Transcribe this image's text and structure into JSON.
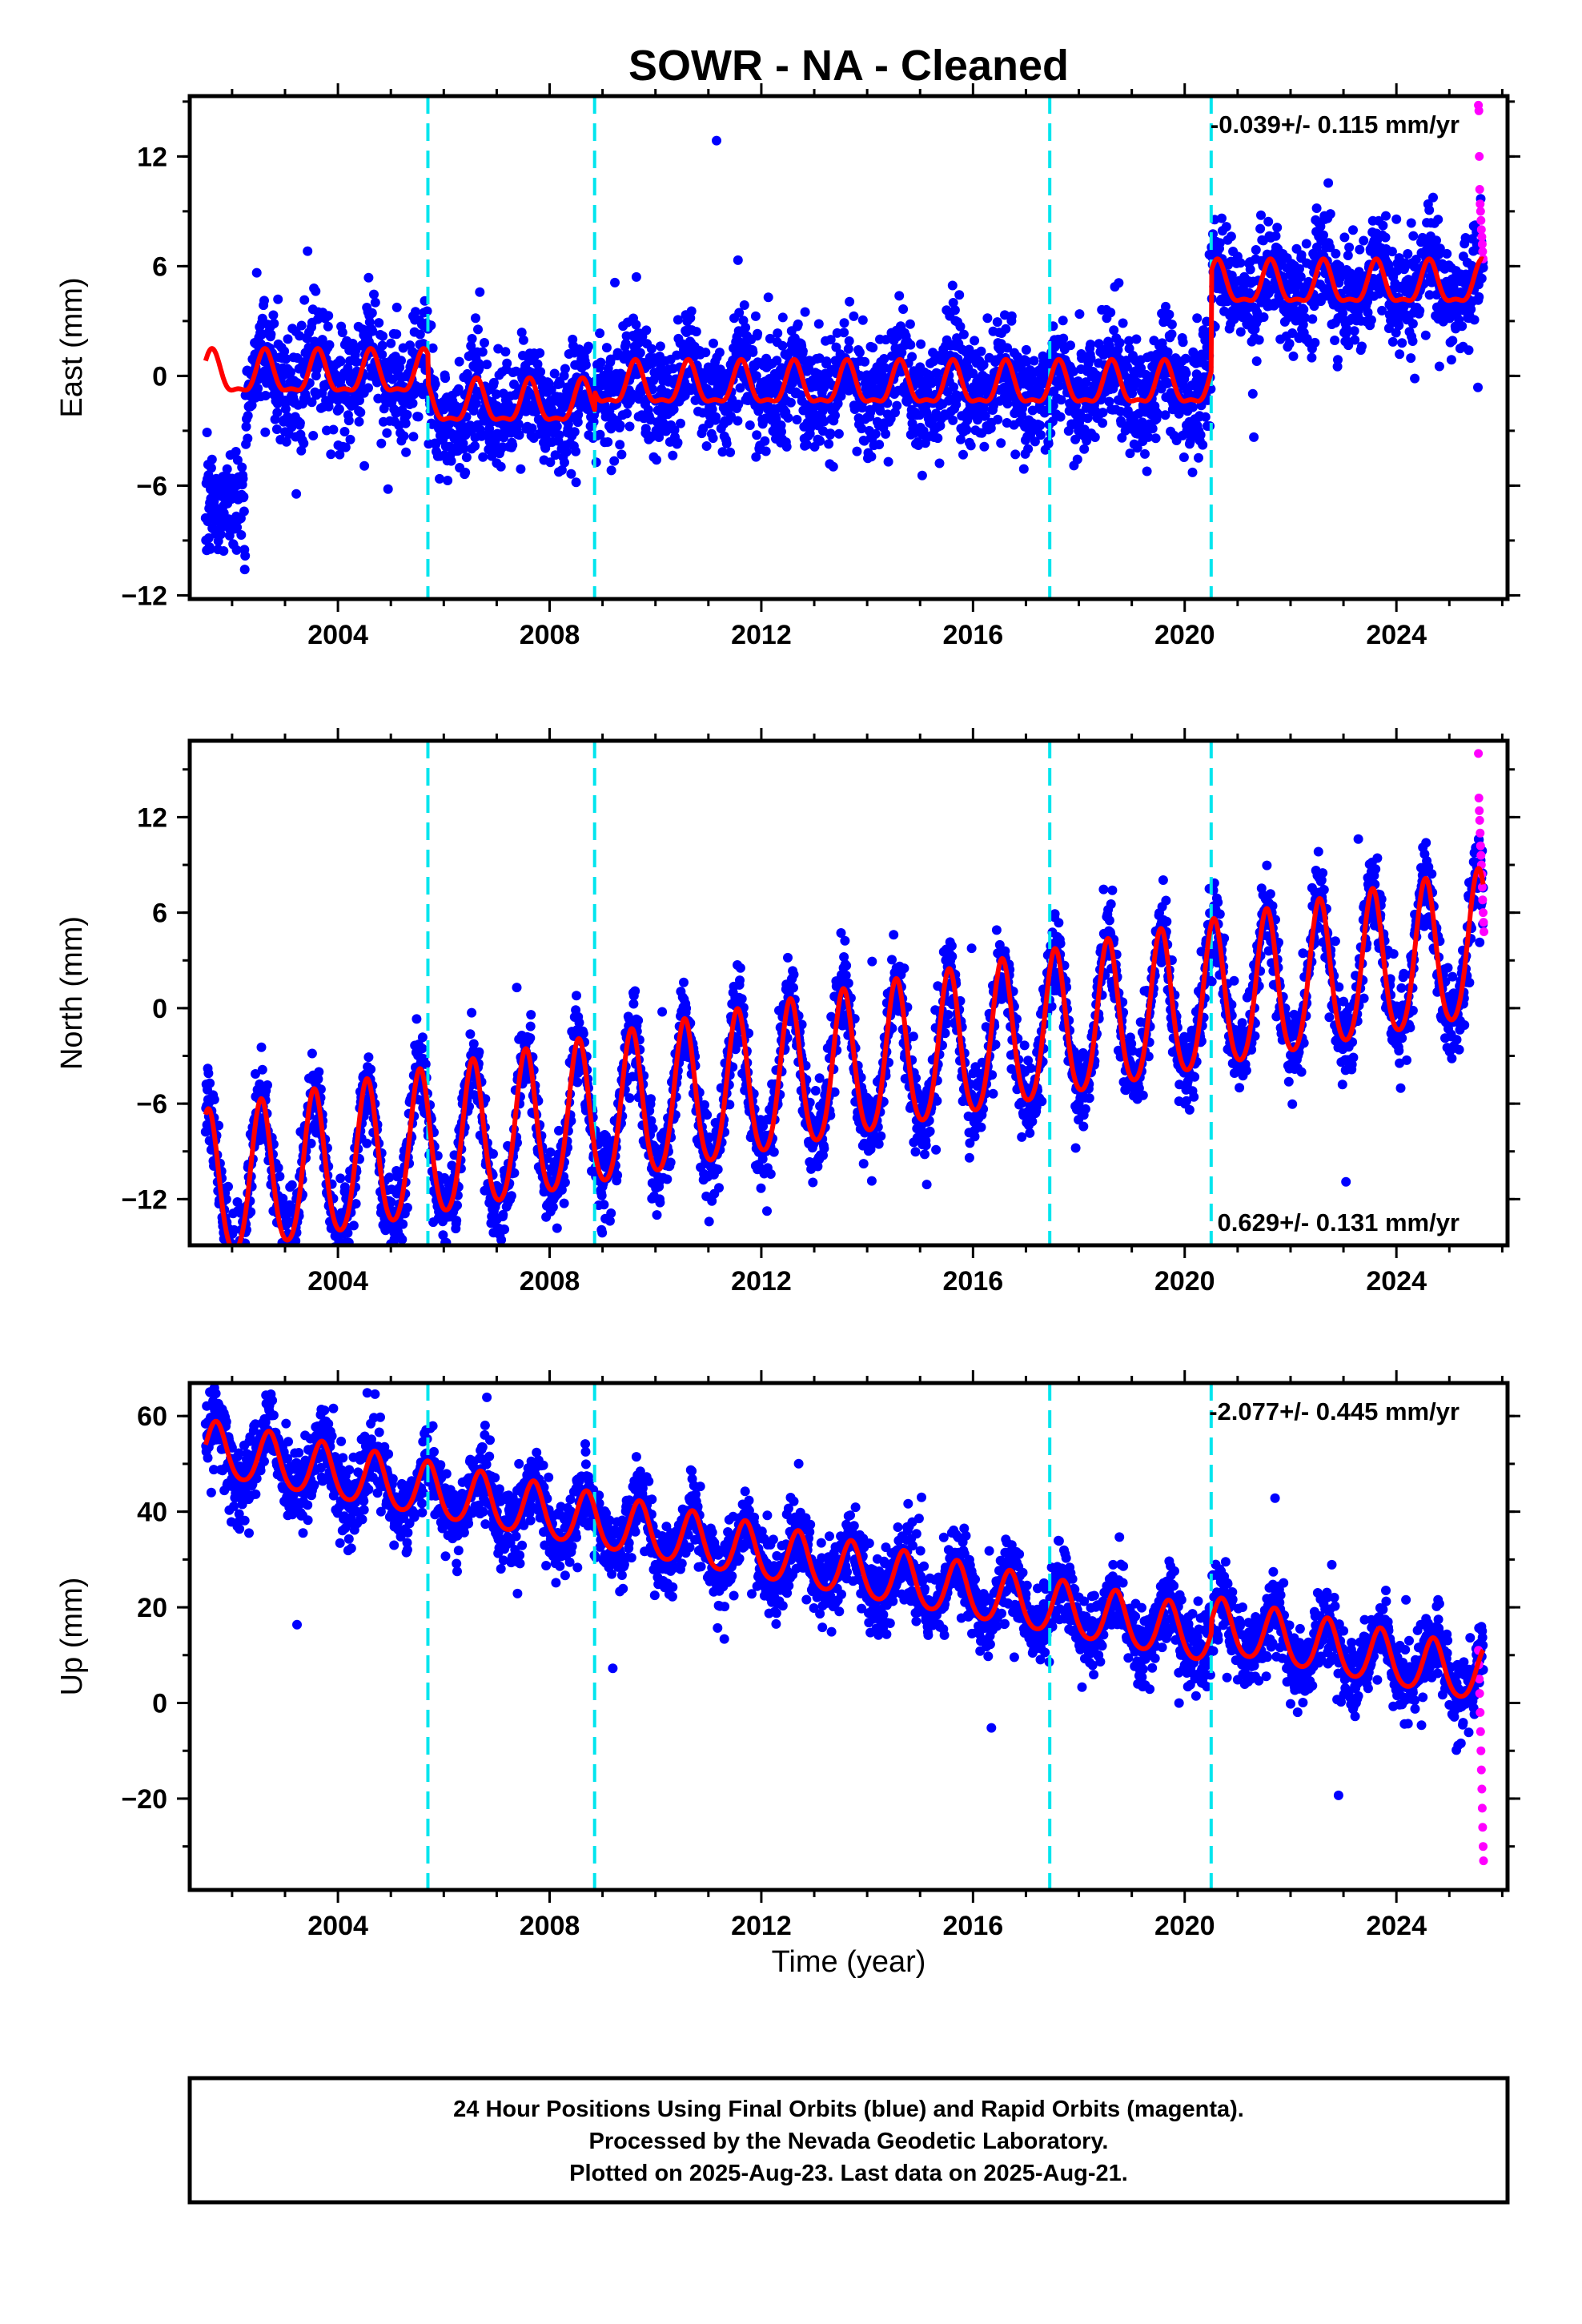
{
  "chart_data": {
    "title": "SOWR  - NA - Cleaned",
    "type": "scatter",
    "xlabel": "Time (year)",
    "x_ticks": [
      2004,
      2008,
      2012,
      2016,
      2020,
      2024
    ],
    "xlim": [
      2001.2,
      2026.1
    ],
    "event_lines_year": [
      2005.7,
      2008.85,
      2017.45,
      2020.5
    ],
    "colors": {
      "final_orbits": "#0000ff",
      "rapid_orbits": "#ff00ff",
      "model_fit": "#ff0000",
      "event_line": "#00e5ee"
    },
    "panels": [
      {
        "id": "east",
        "ylabel": "East (mm)",
        "ylim": [
          -12.2,
          15.3
        ],
        "y_ticks": [
          -12,
          -6,
          0,
          6,
          12
        ],
        "y_tick_labels": [
          "−12",
          "−6",
          "0",
          "6",
          "12"
        ],
        "rate_text": "-0.039+/- 0.115 mm/yr",
        "rate_position": "top-right",
        "model": {
          "segments": [
            {
              "start": 2001.5,
              "end": 2005.7,
              "offset": 0.0,
              "trend": 0.0
            },
            {
              "start": 2005.7,
              "end": 2008.85,
              "offset": -1.6,
              "trend": 0.0
            },
            {
              "start": 2008.85,
              "end": 2017.45,
              "offset": -0.6,
              "trend": 0.0
            },
            {
              "start": 2017.45,
              "end": 2020.5,
              "offset": -0.6,
              "trend": 0.0
            },
            {
              "start": 2020.5,
              "end": 2025.64,
              "offset": 4.9,
              "trend": 0.0
            }
          ],
          "annual_amplitude": 1.1,
          "semiannual_amplitude": 0.4,
          "annual_phase_peak": 0.62,
          "scatter_sd": 1.5
        },
        "rapid_values": [
          14.8,
          14.5,
          12.0,
          10.2,
          9.4,
          9.0,
          8.5,
          8.0,
          7.6,
          7.2,
          6.8,
          6.4
        ]
      },
      {
        "id": "north",
        "ylabel": "North (mm)",
        "ylim": [
          -14.9,
          16.8
        ],
        "y_ticks": [
          -12,
          -6,
          0,
          6,
          12
        ],
        "y_tick_labels": [
          "−12",
          "−6",
          "0",
          "6",
          "12"
        ],
        "rate_text": "0.629+/- 0.131 mm/yr",
        "rate_position": "bottom-right",
        "model": {
          "segments": [
            {
              "start": 2001.5,
              "end": 2025.64,
              "offset": -4.0,
              "trend": 0.629
            }
          ],
          "annual_amplitude": 4.6,
          "semiannual_amplitude": 0.6,
          "annual_phase_peak": 0.55,
          "scatter_sd": 1.3
        },
        "rapid_values": [
          16.0,
          13.2,
          12.4,
          11.8,
          11.0,
          10.2,
          9.6,
          9.0,
          8.4,
          7.6,
          6.8,
          6.0,
          5.4,
          4.8
        ]
      },
      {
        "id": "up",
        "ylabel": "Up (mm)",
        "ylim": [
          -39.1,
          66.9
        ],
        "y_ticks": [
          -20,
          0,
          20,
          40,
          60
        ],
        "y_tick_labels": [
          "−20",
          "0",
          "20",
          "40",
          "60"
        ],
        "rate_text": "-2.077+/- 0.445 mm/yr",
        "rate_position": "top-right",
        "model": {
          "segments": [
            {
              "start": 2001.5,
              "end": 2020.5,
              "offset": 28.0,
              "trend": -2.077
            },
            {
              "start": 2020.5,
              "end": 2025.64,
              "offset": 30.5,
              "trend": -2.077
            }
          ],
          "annual_amplitude": 5.6,
          "semiannual_amplitude": 0.8,
          "annual_phase_peak": 0.7,
          "scatter_sd": 4.0
        },
        "rapid_values": [
          11.0,
          8.0,
          5.0,
          2.0,
          -2.0,
          -6.0,
          -10.0,
          -14.0,
          -18.0,
          -22.0,
          -26.0,
          -30.0,
          -33.0
        ]
      }
    ],
    "footer": {
      "line1": "24 Hour Positions Using Final Orbits (blue) and Rapid Orbits (magenta).",
      "line2": "Processed by the Nevada Geodetic Laboratory.",
      "line3": "Plotted on 2025-Aug-23. Last data on 2025-Aug-21."
    }
  }
}
